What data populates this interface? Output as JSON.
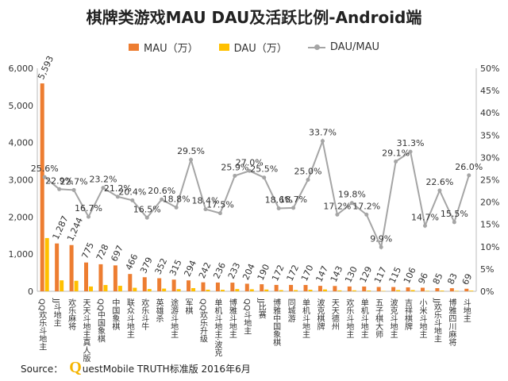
{
  "title": "棋牌类游戏MAU DAU及活跃比例-Android端",
  "legend": [
    {
      "label": "MAU（万）",
      "color": "#ed7d31",
      "kind": "bar"
    },
    {
      "label": "DAU（万）",
      "color": "#ffc000",
      "kind": "bar"
    },
    {
      "label": "DAU/MAU",
      "color": "#a5a5a5",
      "kind": "line"
    }
  ],
  "source": {
    "prefix": "Source：",
    "q": "Q",
    "rest": "uestMobile TRUTH标准版 2016年6月"
  },
  "chart_data": {
    "type": "bar",
    "categories": [
      "QQ欢乐斗地主",
      "JJ斗地主",
      "欢乐麻将",
      "天天斗地主真人版",
      "QQ中国象棋",
      "中国象棋",
      "联众斗地主",
      "欢乐斗牛",
      "英雄杀",
      "途游斗地主",
      "军棋",
      "QQ欢乐升级",
      "单机斗地主·波克",
      "博雅斗地主",
      "QQ斗地主",
      "JJ比赛",
      "博雅中国象棋",
      "同城游",
      "单机斗地主",
      "波克棋牌",
      "天天德州",
      "欢乐斗地主",
      "单机斗地主",
      "五子棋大师",
      "波克斗地主",
      "吉祥棋牌",
      "小米斗地主",
      "JJ欢乐斗地主",
      "博雅四川麻将",
      "斗地主"
    ],
    "series": [
      {
        "name": "MAU（万）",
        "values": [
          5593,
          1287,
          1244,
          775,
          728,
          697,
          466,
          379,
          352,
          315,
          294,
          242,
          236,
          233,
          204,
          190,
          172,
          172,
          170,
          147,
          143,
          130,
          129,
          117,
          115,
          106,
          96,
          85,
          83,
          69
        ],
        "color": "#ed7d31"
      },
      {
        "name": "DAU（万）",
        "values": [
          1433,
          295,
          283,
          130,
          169,
          148,
          95,
          62,
          73,
          59,
          86,
          44,
          41,
          61,
          55,
          48,
          32,
          32,
          43,
          50,
          25,
          26,
          22,
          11,
          33,
          33,
          14,
          19,
          13,
          18
        ],
        "color": "#ffc000"
      },
      {
        "name": "DAU/MAU",
        "values": [
          25.6,
          22.9,
          22.7,
          16.7,
          23.2,
          21.2,
          20.4,
          16.5,
          20.6,
          18.8,
          29.5,
          18.4,
          17.5,
          25.9,
          27.0,
          25.5,
          18.6,
          18.7,
          25.0,
          33.7,
          17.2,
          19.8,
          17.2,
          9.9,
          29.1,
          31.3,
          14.7,
          22.6,
          15.5,
          26.0
        ],
        "color": "#a5a5a5",
        "axis": "right"
      }
    ],
    "mau_labels": [
      "5,593",
      "1,287",
      "1,244",
      "775",
      "728",
      "697",
      "466",
      "379",
      "352",
      "315",
      "294",
      "242",
      "236",
      "233",
      "204",
      "190",
      "172",
      "172",
      "170",
      "147",
      "143",
      "130",
      "129",
      "117",
      "115",
      "106",
      "96",
      "85",
      "83",
      "69"
    ],
    "ratio_labels": [
      "25.6%",
      "22.9%",
      "22.7%",
      "16.7%",
      "23.2%",
      "21.2%",
      "20.4%",
      "16.5%",
      "20.6%",
      "18.8%",
      "29.5%",
      "18.4%",
      "17.5%",
      "25.9%",
      "27.0%",
      "25.5%",
      "18.6%",
      "18.7%",
      "25.0%",
      "33.7%",
      "17.2%",
      "19.8%",
      "17.2%",
      "9.9%",
      "29.1%",
      "31.3%",
      "14.7%",
      "22.6%",
      "15.5%",
      "26.0%"
    ],
    "left_axis": {
      "ylim": [
        0,
        6000
      ],
      "ticks": [
        "0",
        "1,000",
        "2,000",
        "3,000",
        "4,000",
        "5,000",
        "6,000"
      ]
    },
    "right_axis": {
      "ylim": [
        0,
        50
      ],
      "ticks": [
        "0%",
        "5%",
        "10%",
        "15%",
        "20%",
        "25%",
        "30%",
        "35%",
        "40%",
        "45%",
        "50%"
      ]
    },
    "grid": false,
    "legend_position": "top"
  }
}
